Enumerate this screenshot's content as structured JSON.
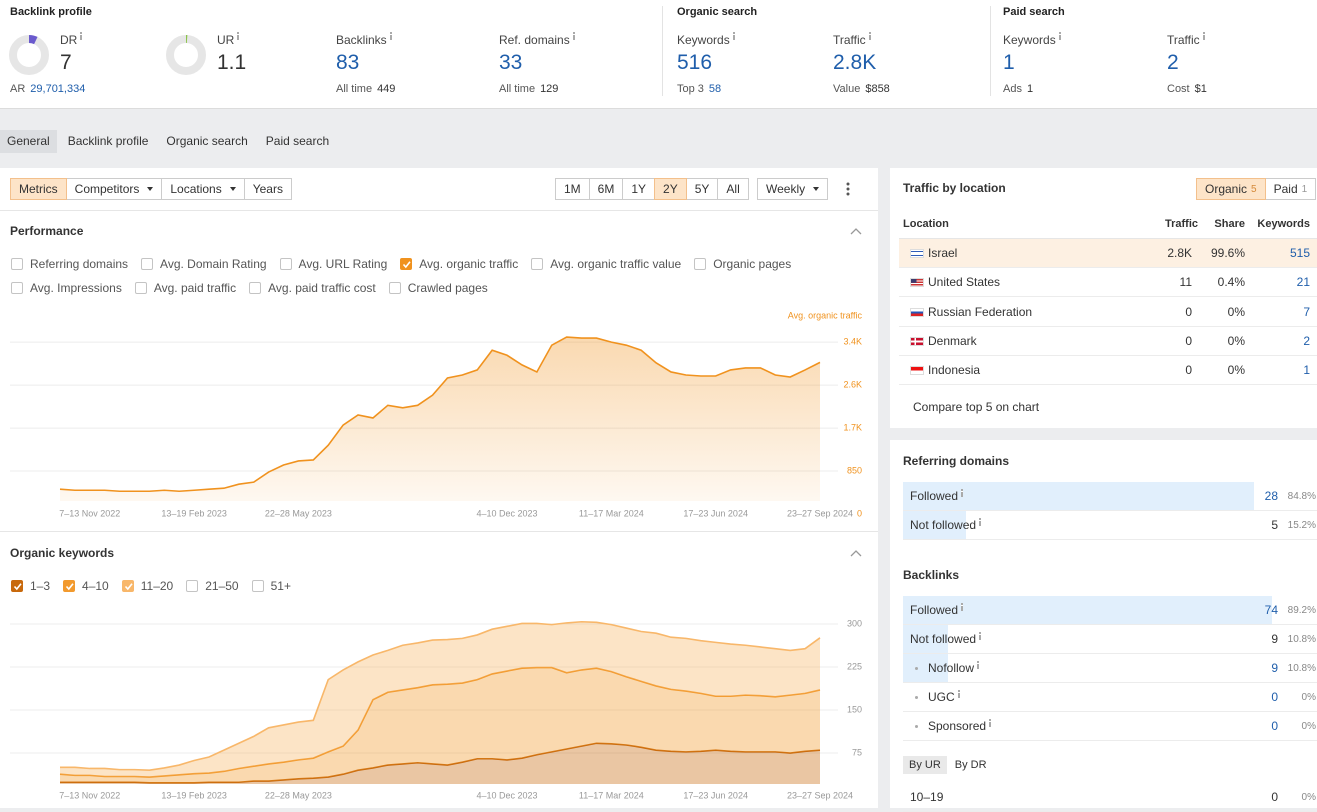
{
  "header": {
    "backlink_profile": {
      "title": "Backlink profile",
      "dr": {
        "label": "DR",
        "value": 7,
        "sub_label": "AR",
        "sub_value": "29,701,334"
      },
      "ur": {
        "label": "UR",
        "value": 1.1
      },
      "backlinks": {
        "label": "Backlinks",
        "value": 83,
        "sub_label": "All time",
        "sub_value": 449
      },
      "ref_domains": {
        "label": "Ref. domains",
        "value": 33,
        "sub_label": "All time",
        "sub_value": 129
      }
    },
    "organic_search": {
      "title": "Organic search",
      "keywords": {
        "label": "Keywords",
        "value": 516,
        "sub_label": "Top 3",
        "sub_value": 58
      },
      "traffic": {
        "label": "Traffic",
        "value": "2.8K",
        "sub_label": "Value",
        "sub_value": "$858"
      }
    },
    "paid_search": {
      "title": "Paid search",
      "keywords": {
        "label": "Keywords",
        "value": 1,
        "sub_label": "Ads",
        "sub_value": 1
      },
      "traffic": {
        "label": "Traffic",
        "value": 2,
        "sub_label": "Cost",
        "sub_value": "$1"
      }
    }
  },
  "tabs": {
    "items": [
      "General",
      "Backlink profile",
      "Organic search",
      "Paid search"
    ],
    "active": 0
  },
  "toolbar": {
    "modes": [
      {
        "label": "Metrics",
        "active": true
      },
      {
        "label": "Competitors",
        "dropdown": true
      },
      {
        "label": "Locations",
        "dropdown": true
      },
      {
        "label": "Years"
      }
    ],
    "ranges": [
      "1M",
      "6M",
      "1Y",
      "2Y",
      "5Y",
      "All"
    ],
    "active_range": 3,
    "interval": "Weekly"
  },
  "performance": {
    "title": "Performance",
    "metrics": [
      [
        {
          "label": "Referring domains",
          "checked": false
        },
        {
          "label": "Avg. Domain Rating",
          "checked": false
        },
        {
          "label": "Avg. URL Rating",
          "checked": false
        },
        {
          "label": "Avg. organic traffic",
          "checked": true
        },
        {
          "label": "Avg. organic traffic value",
          "checked": false
        },
        {
          "label": "Organic pages",
          "checked": false
        }
      ],
      [
        {
          "label": "Avg. Impressions",
          "checked": false
        },
        {
          "label": "Avg. paid traffic",
          "checked": false
        },
        {
          "label": "Avg. paid traffic cost",
          "checked": false
        },
        {
          "label": "Crawled pages",
          "checked": false
        }
      ]
    ]
  },
  "organic_keywords": {
    "title": "Organic keywords",
    "unchecked_filters": [
      "21–50",
      "51+"
    ]
  },
  "chart_data": [
    {
      "type": "area",
      "categories": [
        null,
        null,
        "7–13 Nov 2022",
        null,
        null,
        null,
        null,
        null,
        null,
        "13–19 Feb 2023",
        null,
        null,
        null,
        null,
        null,
        null,
        "22–28 May 2023",
        null,
        null,
        null,
        null,
        null,
        null,
        null,
        null,
        null,
        null,
        null,
        null,
        null,
        "4–10 Dec 2023",
        null,
        null,
        null,
        null,
        null,
        null,
        "11–17 Mar 2024",
        null,
        null,
        null,
        null,
        null,
        null,
        "17–23 Jun 2024",
        null,
        null,
        null,
        null,
        null,
        null,
        "23–27 Sep 2024"
      ],
      "series": [
        {
          "name": "Avg. organic traffic",
          "color": "#f0921e",
          "values": [
            490,
            470,
            470,
            470,
            450,
            450,
            450,
            470,
            450,
            470,
            490,
            510,
            590,
            630,
            830,
            970,
            1050,
            1070,
            1360,
            1760,
            1960,
            1900,
            2150,
            2100,
            2150,
            2350,
            2690,
            2750,
            2850,
            3240,
            3140,
            2950,
            2810,
            3340,
            3500,
            3480,
            3480,
            3400,
            3340,
            3240,
            2990,
            2810,
            2750,
            2730,
            2730,
            2850,
            2890,
            2890,
            2750,
            2710,
            2850,
            3000
          ]
        }
      ],
      "ylim": [
        0,
        3640
      ],
      "yticks": [
        0,
        850,
        {
          "value": 1700,
          "label": "1.7K"
        },
        {
          "value": 2550,
          "label": "2.6K"
        },
        {
          "value": 3400,
          "label": "3.4K"
        }
      ],
      "grid": true
    },
    {
      "type": "stacked_area",
      "categories": [
        null,
        null,
        "7–13 Nov 2022",
        null,
        null,
        null,
        null,
        null,
        null,
        "13–19 Feb 2023",
        null,
        null,
        null,
        null,
        null,
        null,
        "22–28 May 2023",
        null,
        null,
        null,
        null,
        null,
        null,
        null,
        null,
        null,
        null,
        null,
        null,
        null,
        "4–10 Dec 2023",
        null,
        null,
        null,
        null,
        null,
        null,
        "11–17 Mar 2024",
        null,
        null,
        null,
        null,
        null,
        null,
        "17–23 Jun 2024",
        null,
        null,
        null,
        null,
        null,
        null,
        "23–27 Sep 2024"
      ],
      "series": [
        {
          "name": "1–3",
          "color": "#c8690c",
          "values": [
            24,
            24,
            24,
            24,
            24,
            24,
            23,
            23,
            23,
            23,
            24,
            24,
            24,
            26,
            26,
            28,
            30,
            31,
            33,
            38,
            45,
            49,
            54,
            56,
            58,
            56,
            54,
            59,
            65,
            65,
            63,
            66,
            72,
            77,
            82,
            87,
            92,
            91,
            89,
            85,
            80,
            78,
            77,
            78,
            80,
            78,
            77,
            77,
            77,
            75,
            78,
            80
          ]
        },
        {
          "name": "4–10",
          "color": "#f29a2e",
          "values": [
            14,
            12,
            12,
            10,
            10,
            10,
            10,
            12,
            14,
            16,
            16,
            19,
            24,
            26,
            30,
            31,
            33,
            35,
            44,
            49,
            70,
            119,
            127,
            129,
            131,
            138,
            141,
            138,
            138,
            148,
            155,
            157,
            152,
            147,
            133,
            133,
            131,
            126,
            119,
            115,
            112,
            108,
            106,
            101,
            94,
            96,
            99,
            98,
            96,
            101,
            101,
            105
          ]
        },
        {
          "name": "11–20",
          "color": "#f8b76a",
          "values": [
            12,
            14,
            12,
            14,
            12,
            12,
            12,
            14,
            17,
            23,
            28,
            37,
            44,
            52,
            63,
            65,
            66,
            66,
            126,
            133,
            119,
            78,
            73,
            78,
            78,
            78,
            78,
            78,
            78,
            78,
            78,
            78,
            77,
            75,
            87,
            84,
            80,
            82,
            85,
            87,
            92,
            91,
            92,
            92,
            94,
            91,
            87,
            85,
            84,
            78,
            78,
            91
          ]
        }
      ],
      "ylim": [
        0,
        321
      ],
      "yticks": [
        75,
        150,
        225,
        300
      ],
      "grid": true
    }
  ],
  "traffic_by_location": {
    "title": "Traffic by location",
    "toggle": [
      {
        "label": "Organic",
        "count": 5,
        "active": true
      },
      {
        "label": "Paid",
        "count": 1
      }
    ],
    "columns": [
      "Location",
      "Traffic",
      "Share",
      "Keywords"
    ],
    "rows": [
      {
        "country": "Israel",
        "traffic": "2.8K",
        "share": "99.6%",
        "keywords": 515
      },
      {
        "country": "United States",
        "traffic": 11,
        "share": "0.4%",
        "keywords": 21
      },
      {
        "country": "Russian Federation",
        "traffic": 0,
        "share": "0%",
        "keywords": 7
      },
      {
        "country": "Denmark",
        "traffic": 0,
        "share": "0%",
        "keywords": 2
      },
      {
        "country": "Indonesia",
        "traffic": 0,
        "share": "0%",
        "keywords": 1
      }
    ],
    "compare_link": "Compare top 5 on chart"
  },
  "referring_domains": {
    "title": "Referring domains",
    "rows": [
      {
        "label": "Followed",
        "count": 28,
        "share": "84.8%"
      },
      {
        "label": "Not followed",
        "count": 5,
        "share": "15.2%"
      }
    ]
  },
  "backlinks": {
    "title": "Backlinks",
    "rows": [
      {
        "label": "Followed",
        "count": 74,
        "share": "89.2%"
      },
      {
        "label": "Not followed",
        "count": 9,
        "share": "10.8%"
      },
      {
        "label": "Nofollow",
        "count": 9,
        "share": "10.8%",
        "sub": true
      },
      {
        "label": "UGC",
        "count": 0,
        "share": "0%",
        "sub": true
      },
      {
        "label": "Sponsored",
        "count": 0,
        "share": "0%",
        "sub": true
      }
    ]
  },
  "distribution": {
    "tabs": [
      "By UR",
      "By DR"
    ],
    "active": 0,
    "rows": [
      {
        "label": "10–19",
        "count": 0,
        "share": "0%"
      }
    ]
  }
}
